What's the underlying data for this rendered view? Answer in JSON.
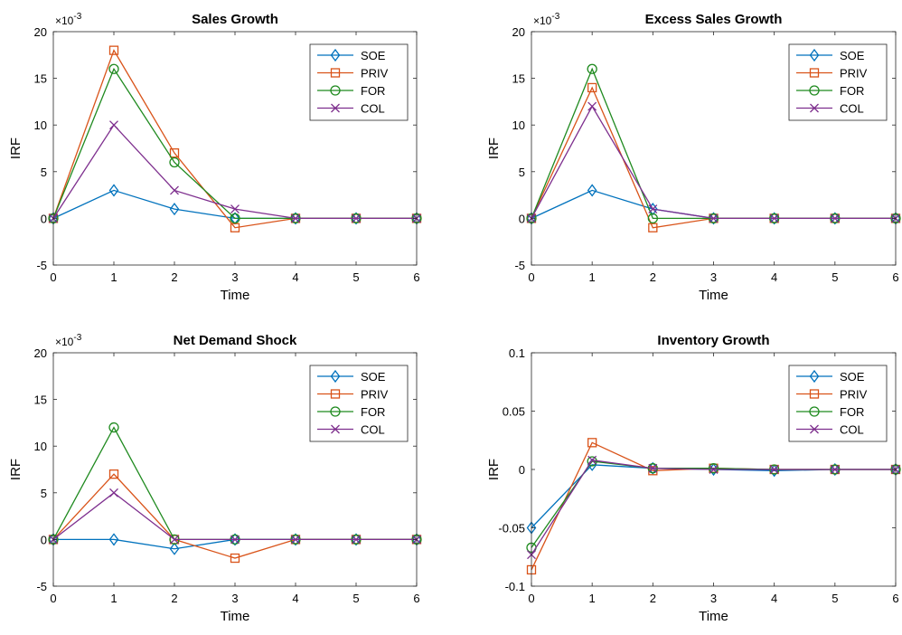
{
  "chart_data": [
    {
      "type": "line",
      "title": "Sales Growth",
      "xlabel": "Time",
      "ylabel": "IRF",
      "exponent_label": "×10",
      "exponent_power": "-3",
      "x": [
        0,
        1,
        2,
        3,
        4,
        5,
        6
      ],
      "xlim": [
        0,
        6
      ],
      "ylim": [
        -5,
        20
      ],
      "xticks": [
        "0",
        "1",
        "2",
        "3",
        "4",
        "5",
        "6"
      ],
      "yticks": [
        "-5",
        "0",
        "5",
        "10",
        "15",
        "20"
      ],
      "ytick_values": [
        -5,
        0,
        5,
        10,
        15,
        20
      ],
      "legend_position": "top-right",
      "series": [
        {
          "name": "SOE",
          "values": [
            0,
            3,
            1,
            0,
            0,
            0,
            0
          ],
          "color": "#0072BD",
          "marker": "diamond"
        },
        {
          "name": "PRIV",
          "values": [
            0,
            18,
            7,
            -1,
            0,
            0,
            0
          ],
          "color": "#D95319",
          "marker": "square"
        },
        {
          "name": "FOR",
          "values": [
            0,
            16,
            6,
            0,
            0,
            0,
            0
          ],
          "color": "#1F8A1F",
          "marker": "circle"
        },
        {
          "name": "COL",
          "values": [
            0,
            10,
            3,
            1,
            0,
            0,
            0
          ],
          "color": "#7E2F8E",
          "marker": "x"
        }
      ]
    },
    {
      "type": "line",
      "title": "Excess Sales Growth",
      "xlabel": "Time",
      "ylabel": "IRF",
      "exponent_label": "×10",
      "exponent_power": "-3",
      "x": [
        0,
        1,
        2,
        3,
        4,
        5,
        6
      ],
      "xlim": [
        0,
        6
      ],
      "ylim": [
        -5,
        20
      ],
      "xticks": [
        "0",
        "1",
        "2",
        "3",
        "4",
        "5",
        "6"
      ],
      "yticks": [
        "-5",
        "0",
        "5",
        "10",
        "15",
        "20"
      ],
      "ytick_values": [
        -5,
        0,
        5,
        10,
        15,
        20
      ],
      "legend_position": "top-right",
      "series": [
        {
          "name": "SOE",
          "values": [
            0,
            3,
            1,
            0,
            0,
            0,
            0
          ],
          "color": "#0072BD",
          "marker": "diamond"
        },
        {
          "name": "PRIV",
          "values": [
            0,
            14,
            -1,
            0,
            0,
            0,
            0
          ],
          "color": "#D95319",
          "marker": "square"
        },
        {
          "name": "FOR",
          "values": [
            0,
            16,
            0,
            0,
            0,
            0,
            0
          ],
          "color": "#1F8A1F",
          "marker": "circle"
        },
        {
          "name": "COL",
          "values": [
            0,
            12,
            1,
            0,
            0,
            0,
            0
          ],
          "color": "#7E2F8E",
          "marker": "x"
        }
      ]
    },
    {
      "type": "line",
      "title": "Net Demand Shock",
      "xlabel": "Time",
      "ylabel": "IRF",
      "exponent_label": "×10",
      "exponent_power": "-3",
      "x": [
        0,
        1,
        2,
        3,
        4,
        5,
        6
      ],
      "xlim": [
        0,
        6
      ],
      "ylim": [
        -5,
        20
      ],
      "xticks": [
        "0",
        "1",
        "2",
        "3",
        "4",
        "5",
        "6"
      ],
      "yticks": [
        "-5",
        "0",
        "5",
        "10",
        "15",
        "20"
      ],
      "ytick_values": [
        -5,
        0,
        5,
        10,
        15,
        20
      ],
      "legend_position": "top-right",
      "series": [
        {
          "name": "SOE",
          "values": [
            0,
            0,
            -1,
            0,
            0,
            0,
            0
          ],
          "color": "#0072BD",
          "marker": "diamond"
        },
        {
          "name": "PRIV",
          "values": [
            0,
            7,
            0,
            -2,
            0,
            0,
            0
          ],
          "color": "#D95319",
          "marker": "square"
        },
        {
          "name": "FOR",
          "values": [
            0,
            12,
            0,
            0,
            0,
            0,
            0
          ],
          "color": "#1F8A1F",
          "marker": "circle"
        },
        {
          "name": "COL",
          "values": [
            0,
            5,
            0,
            0,
            0,
            0,
            0
          ],
          "color": "#7E2F8E",
          "marker": "x"
        }
      ]
    },
    {
      "type": "line",
      "title": "Inventory Growth",
      "xlabel": "Time",
      "ylabel": "IRF",
      "exponent_label": "",
      "exponent_power": "",
      "x": [
        0,
        1,
        2,
        3,
        4,
        5,
        6
      ],
      "xlim": [
        0,
        6
      ],
      "ylim": [
        -0.1,
        0.1
      ],
      "xticks": [
        "0",
        "1",
        "2",
        "3",
        "4",
        "5",
        "6"
      ],
      "yticks": [
        "-0.1",
        "-0.05",
        "0",
        "0.05",
        "0.1"
      ],
      "ytick_values": [
        -0.1,
        -0.05,
        0,
        0.05,
        0.1
      ],
      "legend_position": "top-right",
      "series": [
        {
          "name": "SOE",
          "values": [
            -0.05,
            0.004,
            0.001,
            0.0,
            -0.001,
            0,
            0
          ],
          "color": "#0072BD",
          "marker": "diamond"
        },
        {
          "name": "PRIV",
          "values": [
            -0.086,
            0.023,
            -0.001,
            0.001,
            0,
            0,
            0
          ],
          "color": "#D95319",
          "marker": "square"
        },
        {
          "name": "FOR",
          "values": [
            -0.067,
            0.007,
            0.001,
            0.001,
            0,
            0,
            0
          ],
          "color": "#1F8A1F",
          "marker": "circle"
        },
        {
          "name": "COL",
          "values": [
            -0.073,
            0.008,
            0.001,
            0.0,
            0,
            0,
            0
          ],
          "color": "#7E2F8E",
          "marker": "x"
        }
      ]
    }
  ]
}
